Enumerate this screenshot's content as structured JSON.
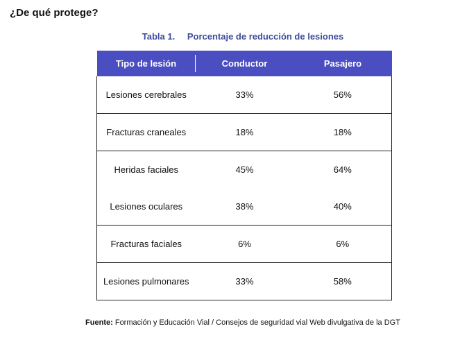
{
  "heading": "¿De qué protege?",
  "table": {
    "caption_number": "Tabla 1.",
    "caption_title": "Porcentaje de reducción de lesiones",
    "columns": [
      "Tipo de lesión",
      "Conductor",
      "Pasajero"
    ],
    "rows": [
      {
        "tipo": "Lesiones cerebrales",
        "conductor": "33%",
        "pasajero": "56%"
      },
      {
        "tipo": "Fracturas craneales",
        "conductor": "18%",
        "pasajero": "18%"
      },
      {
        "tipo": "Heridas faciales",
        "conductor": "45%",
        "pasajero": "64%"
      },
      {
        "tipo": "Lesiones oculares",
        "conductor": "38%",
        "pasajero": "40%"
      },
      {
        "tipo": "Fracturas faciales",
        "conductor": "6%",
        "pasajero": "6%"
      },
      {
        "tipo": "Lesiones pulmonares",
        "conductor": "33%",
        "pasajero": "58%"
      }
    ]
  },
  "source": {
    "label": "Fuente:",
    "text": "Formación y Educación Vial / Consejos de seguridad vial Web divulgativa de la DGT"
  }
}
